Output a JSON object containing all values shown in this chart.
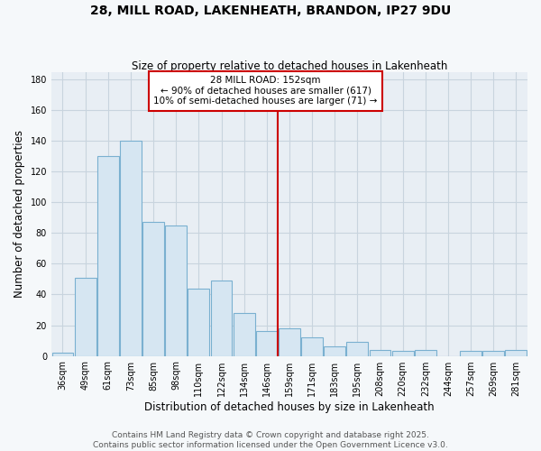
{
  "title": "28, MILL ROAD, LAKENHEATH, BRANDON, IP27 9DU",
  "subtitle": "Size of property relative to detached houses in Lakenheath",
  "xlabel": "Distribution of detached houses by size in Lakenheath",
  "ylabel": "Number of detached properties",
  "bar_labels": [
    "36sqm",
    "49sqm",
    "61sqm",
    "73sqm",
    "85sqm",
    "98sqm",
    "110sqm",
    "122sqm",
    "134sqm",
    "146sqm",
    "159sqm",
    "171sqm",
    "183sqm",
    "195sqm",
    "208sqm",
    "220sqm",
    "232sqm",
    "244sqm",
    "257sqm",
    "269sqm",
    "281sqm"
  ],
  "bar_values": [
    2,
    51,
    130,
    140,
    87,
    85,
    44,
    49,
    28,
    16,
    18,
    12,
    6,
    9,
    4,
    3,
    4,
    0,
    3,
    3,
    4
  ],
  "bar_color": "#d6e6f2",
  "bar_edge_color": "#7ab0d0",
  "vline_x": 9.5,
  "vline_color": "#cc0000",
  "ylim": [
    0,
    185
  ],
  "yticks": [
    0,
    20,
    40,
    60,
    80,
    100,
    120,
    140,
    160,
    180
  ],
  "annotation_title": "28 MILL ROAD: 152sqm",
  "annotation_line1": "← 90% of detached houses are smaller (617)",
  "annotation_line2": "10% of semi-detached houses are larger (71) →",
  "footer_line1": "Contains HM Land Registry data © Crown copyright and database right 2025.",
  "footer_line2": "Contains public sector information licensed under the Open Government Licence v3.0.",
  "plot_bg_color": "#e8eef4",
  "fig_bg_color": "#f5f8fa",
  "grid_color": "#c8d4de",
  "title_fontsize": 10,
  "subtitle_fontsize": 8.5,
  "axis_label_fontsize": 8.5,
  "tick_fontsize": 7,
  "annotation_fontsize": 7.5,
  "footer_fontsize": 6.5
}
